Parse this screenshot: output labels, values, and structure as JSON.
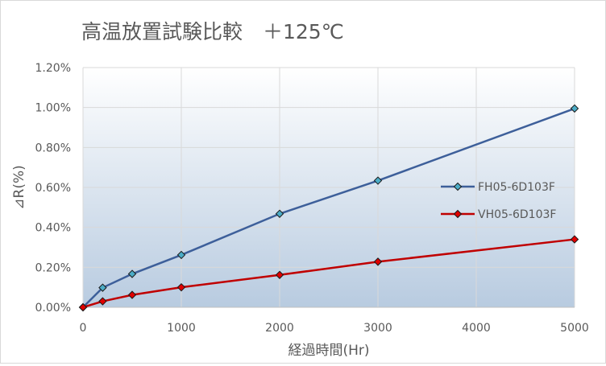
{
  "chart_data": {
    "type": "line",
    "title": "高温放置試験比較　＋125℃",
    "xlabel": "経過時間(Hr)",
    "ylabel": "⊿R(%)",
    "xlim": [
      0,
      5000
    ],
    "ylim": [
      0,
      0.012
    ],
    "x_ticks": [
      0,
      1000,
      2000,
      3000,
      4000,
      5000
    ],
    "x_tick_labels": [
      "0",
      "1000",
      "2000",
      "3000",
      "4000",
      "5000"
    ],
    "y_ticks": [
      0,
      0.002,
      0.004,
      0.006,
      0.008,
      0.01,
      0.012
    ],
    "y_tick_labels": [
      "0.00%",
      "0.20%",
      "0.40%",
      "0.60%",
      "0.80%",
      "1.00%",
      "1.20%"
    ],
    "grid": true,
    "legend_position": "right",
    "series": [
      {
        "name": "FH05-6D103F",
        "color": "#3d5f9a",
        "marker_color": "#4bacc6",
        "x": [
          0,
          200,
          500,
          1000,
          2000,
          3000,
          5000
        ],
        "y": [
          0,
          0.00098,
          0.00167,
          0.00262,
          0.00468,
          0.00634,
          0.00995
        ]
      },
      {
        "name": "VH05-6D103F",
        "color": "#c00000",
        "marker_color": "#e00000",
        "x": [
          0,
          200,
          500,
          1000,
          2000,
          3000,
          5000
        ],
        "y": [
          0,
          0.0003,
          0.00062,
          0.001,
          0.00162,
          0.00228,
          0.0034
        ]
      }
    ]
  }
}
